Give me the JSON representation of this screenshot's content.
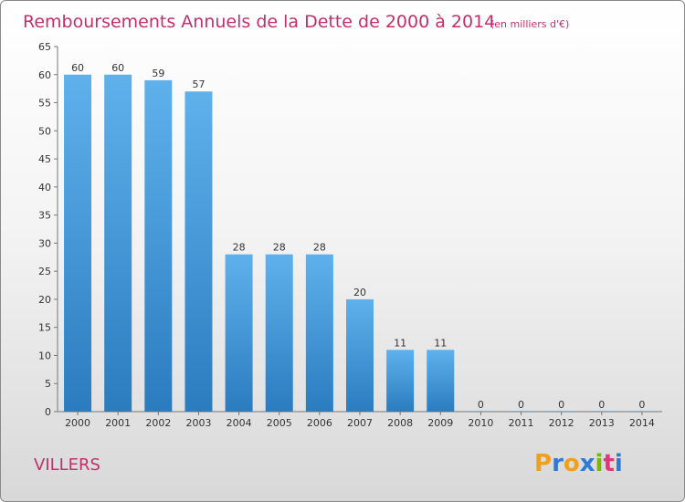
{
  "chart_data": {
    "type": "bar",
    "title": "Remboursements Annuels de la Dette de 2000 à 2014",
    "subtitle": "(en milliers d'€)",
    "categories": [
      "2000",
      "2001",
      "2002",
      "2003",
      "2004",
      "2005",
      "2006",
      "2007",
      "2008",
      "2009",
      "2010",
      "2011",
      "2012",
      "2013",
      "2014"
    ],
    "values": [
      60,
      60,
      59,
      57,
      28,
      28,
      28,
      20,
      11,
      11,
      0,
      0,
      0,
      0,
      0
    ],
    "ylim": [
      0,
      65
    ],
    "yticks": [
      0,
      5,
      10,
      15,
      20,
      25,
      30,
      35,
      40,
      45,
      50,
      55,
      60,
      65
    ],
    "grid": false,
    "bar_color_top": "#5fb1ec",
    "bar_color_bottom": "#2b7cbf"
  },
  "commune": "VILLERS",
  "logo": {
    "text": "Proxiti",
    "letters": [
      "P",
      "r",
      "o",
      "x",
      "i",
      "t",
      "i"
    ],
    "colors": [
      "#f0a020",
      "#2e7bd6",
      "#f0a020",
      "#2e7bd6",
      "#7ab800",
      "#e8357a",
      "#2e7bd6"
    ]
  },
  "colors": {
    "accent": "#c0306b"
  }
}
